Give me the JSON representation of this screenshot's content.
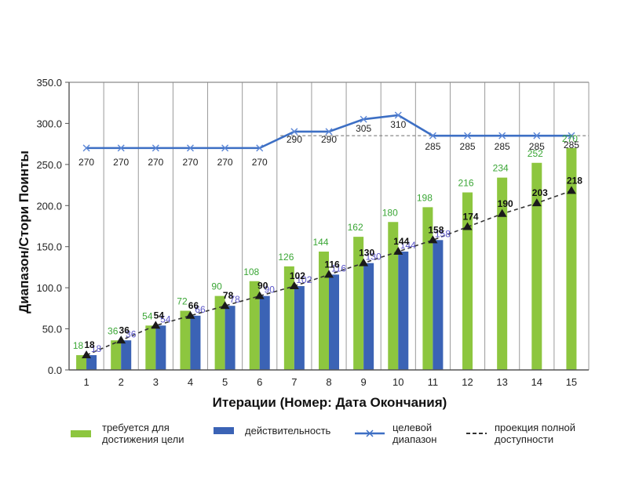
{
  "chart_data": {
    "type": "bar",
    "title": "",
    "xlabel": "Итерации (Номер: Дата Окончания)",
    "ylabel": "Диапазон/Стори Поинты",
    "ylim": [
      0,
      350
    ],
    "y_ticks": [
      "0.0",
      "50.0",
      "100.0",
      "150.0",
      "200.0",
      "250.0",
      "300.0",
      "350.0"
    ],
    "grid": "vertical",
    "categories": [
      "1",
      "2",
      "3",
      "4",
      "5",
      "6",
      "7",
      "8",
      "9",
      "10",
      "11",
      "12",
      "13",
      "14",
      "15"
    ],
    "series": [
      {
        "name": "требуется для достижения цели",
        "kind": "bar",
        "color": "#8dc63f",
        "label_color": "#3aa635",
        "values": [
          18,
          36,
          54,
          72,
          90,
          108,
          126,
          144,
          162,
          180,
          198,
          216,
          234,
          252,
          270
        ],
        "labels": [
          "18",
          "36",
          "54",
          "72",
          "90",
          "108",
          "126",
          "144",
          "162",
          "180",
          "198",
          "216",
          "234",
          "252",
          "270"
        ]
      },
      {
        "name": "действительность",
        "kind": "bar",
        "color": "#3b63b5",
        "label_color": "#5a55c8",
        "values": [
          18,
          36,
          54,
          66,
          78,
          90,
          102,
          116,
          130,
          144,
          158,
          null,
          null,
          null,
          null
        ],
        "labels": [
          "18",
          "36",
          "54",
          "66",
          "78",
          "90",
          "102",
          "116",
          "130",
          "144",
          "158",
          "",
          "",
          "",
          ""
        ]
      },
      {
        "name": "целевой диапазон",
        "kind": "line",
        "color": "#3d6fc4",
        "values": [
          270,
          270,
          270,
          270,
          270,
          270,
          290,
          290,
          305,
          310,
          285,
          285,
          285,
          285,
          285
        ],
        "labels": [
          "270",
          "270",
          "270",
          "270",
          "270",
          "270",
          "290",
          "290",
          "305",
          "310",
          "285",
          "285",
          "285",
          "285",
          "285"
        ]
      },
      {
        "name": "проекция полной доступности",
        "kind": "dashed-line",
        "color": "#333333",
        "values": [
          18,
          36,
          54,
          66,
          78,
          90,
          102,
          116,
          130,
          144,
          158,
          174,
          190,
          203,
          218
        ],
        "labels": [
          "18",
          "36",
          "54",
          "66",
          "78",
          "90",
          "102",
          "116",
          "130",
          "144",
          "158",
          "174",
          "190",
          "203",
          "218"
        ]
      }
    ],
    "reference_line": {
      "value": 285,
      "style": "dashed",
      "color": "#888888"
    },
    "legend": {
      "placement": "bottom",
      "items": [
        {
          "label": "требуется для\nдостижения цели",
          "swatch": "bar",
          "color": "#8dc63f"
        },
        {
          "label": "действительность",
          "swatch": "bar",
          "color": "#3b63b5"
        },
        {
          "label": "целевой\nдиапазон",
          "swatch": "line-x",
          "color": "#3d6fc4"
        },
        {
          "label": "проекция полной\nдоступности",
          "swatch": "dashed",
          "color": "#333333"
        }
      ]
    }
  }
}
